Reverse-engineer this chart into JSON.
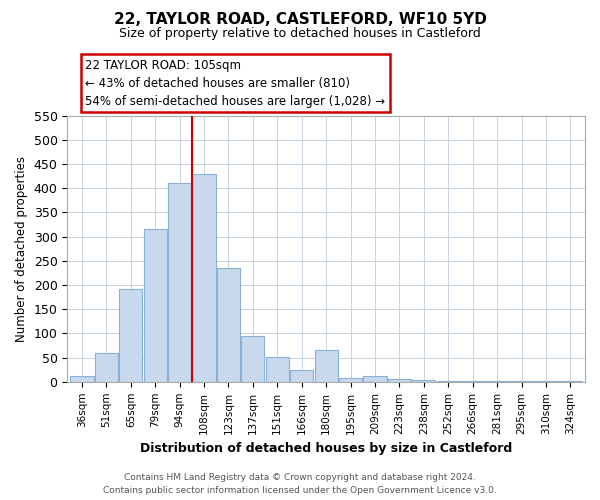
{
  "title": "22, TAYLOR ROAD, CASTLEFORD, WF10 5YD",
  "subtitle": "Size of property relative to detached houses in Castleford",
  "xlabel": "Distribution of detached houses by size in Castleford",
  "ylabel": "Number of detached properties",
  "bar_color": "#c8d9ee",
  "bar_edge_color": "#8ab0d4",
  "categories": [
    "36sqm",
    "51sqm",
    "65sqm",
    "79sqm",
    "94sqm",
    "108sqm",
    "123sqm",
    "137sqm",
    "151sqm",
    "166sqm",
    "180sqm",
    "195sqm",
    "209sqm",
    "223sqm",
    "238sqm",
    "252sqm",
    "266sqm",
    "281sqm",
    "295sqm",
    "310sqm",
    "324sqm"
  ],
  "values": [
    13,
    60,
    191,
    315,
    410,
    430,
    235,
    95,
    52,
    25,
    65,
    8,
    12,
    5,
    3,
    2,
    2,
    2,
    1,
    1,
    2
  ],
  "vline_x": 4.5,
  "vline_color": "#cc0000",
  "ylim": [
    0,
    550
  ],
  "yticks": [
    0,
    50,
    100,
    150,
    200,
    250,
    300,
    350,
    400,
    450,
    500,
    550
  ],
  "annotation_title": "22 TAYLOR ROAD: 105sqm",
  "annotation_line1": "← 43% of detached houses are smaller (810)",
  "annotation_line2": "54% of semi-detached houses are larger (1,028) →",
  "footer_line1": "Contains HM Land Registry data © Crown copyright and database right 2024.",
  "footer_line2": "Contains public sector information licensed under the Open Government Licence v3.0.",
  "background_color": "#ffffff",
  "grid_color": "#c8d4e0"
}
